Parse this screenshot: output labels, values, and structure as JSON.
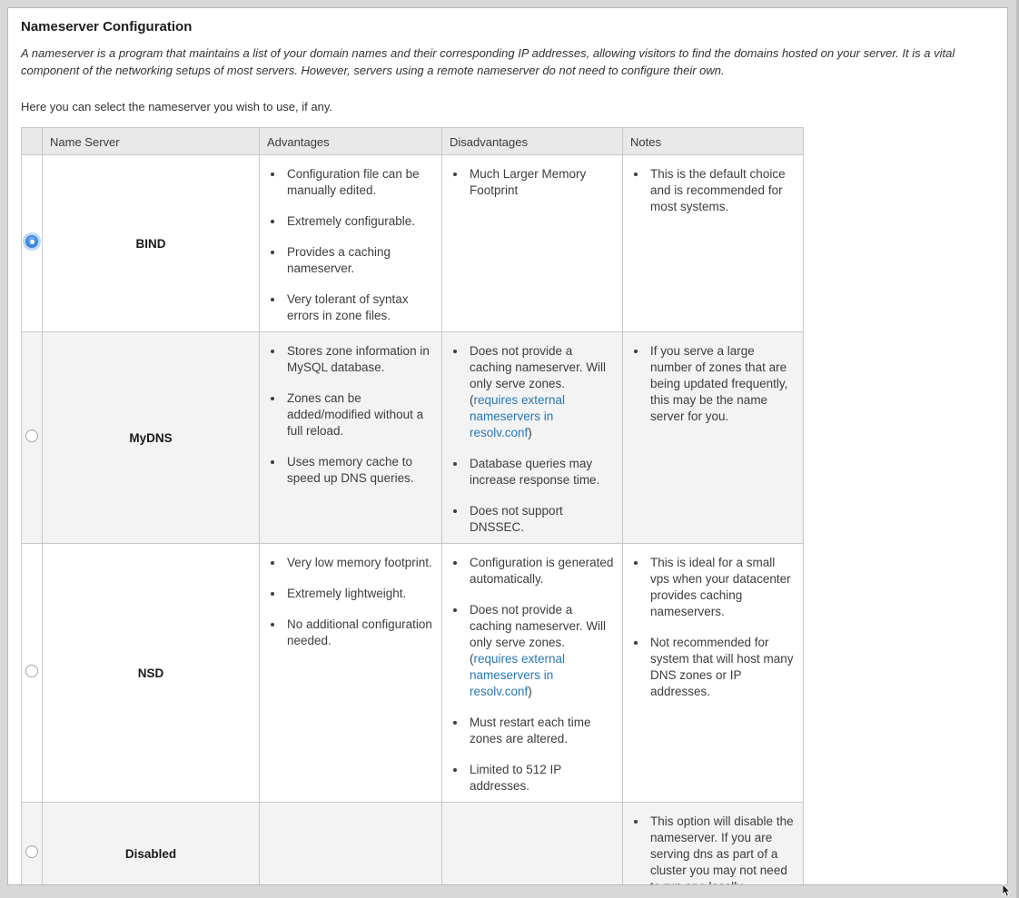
{
  "page": {
    "title": "Nameserver Configuration",
    "description": "A nameserver is a program that maintains a list of your domain names and their corresponding IP addresses, allowing visitors to find the domains hosted on your server. It is a vital component of the networking setups of most servers. However, servers using a remote nameserver do not need to configure their own.",
    "instruction": "Here you can select the nameserver you wish to use, if any."
  },
  "colors": {
    "link": "#2878b8",
    "radio_selected": "#3c8ce6",
    "header_bg": "#e9e9e9",
    "alt_row_bg": "#f3f3f3",
    "page_bg": "#d8d8d8"
  },
  "table": {
    "headers": [
      "",
      "Name Server",
      "Advantages",
      "Disadvantages",
      "Notes"
    ],
    "rows": [
      {
        "name": "BIND",
        "selected": true,
        "advantages": [
          [
            {
              "text": "Configuration file can be manually edited."
            }
          ],
          [
            {
              "text": "Extremely configurable."
            }
          ],
          [
            {
              "text": "Provides a caching nameserver."
            }
          ],
          [
            {
              "text": "Very tolerant of syntax errors in zone files."
            }
          ]
        ],
        "disadvantages": [
          [
            {
              "text": "Much Larger Memory Footprint"
            }
          ]
        ],
        "notes": [
          [
            {
              "text": "This is the default choice and is recommended for most systems."
            }
          ]
        ]
      },
      {
        "name": "MyDNS",
        "selected": false,
        "advantages": [
          [
            {
              "text": "Stores zone information in MySQL database."
            }
          ],
          [
            {
              "text": "Zones can be added/modified without a full reload."
            }
          ],
          [
            {
              "text": "Uses memory cache to speed up DNS queries."
            }
          ]
        ],
        "disadvantages": [
          [
            {
              "text": "Does not provide a caching nameserver. Will only serve zones. ("
            },
            {
              "text": "requires external nameservers in resolv.conf",
              "link": true
            },
            {
              "text": ")"
            }
          ],
          [
            {
              "text": "Database queries may increase response time."
            }
          ],
          [
            {
              "text": "Does not support DNSSEC."
            }
          ]
        ],
        "notes": [
          [
            {
              "text": "If you serve a large number of zones that are being updated frequently, this may be the name server for you."
            }
          ]
        ]
      },
      {
        "name": "NSD",
        "selected": false,
        "advantages": [
          [
            {
              "text": "Very low memory footprint."
            }
          ],
          [
            {
              "text": "Extremely lightweight."
            }
          ],
          [
            {
              "text": "No additional configuration needed."
            }
          ]
        ],
        "disadvantages": [
          [
            {
              "text": "Configuration is generated automatically."
            }
          ],
          [
            {
              "text": "Does not provide a caching nameserver. Will only serve zones. ("
            },
            {
              "text": "requires external nameservers in resolv.conf",
              "link": true
            },
            {
              "text": ")"
            }
          ],
          [
            {
              "text": "Must restart each time zones are altered."
            }
          ],
          [
            {
              "text": "Limited to 512 IP addresses."
            }
          ]
        ],
        "notes": [
          [
            {
              "text": "This is ideal for a small vps when your datacenter provides caching nameservers."
            }
          ],
          [
            {
              "text": "Not recommended for system that will host many DNS zones or IP addresses."
            }
          ]
        ]
      },
      {
        "name": "Disabled",
        "selected": false,
        "advantages": [],
        "disadvantages": [],
        "notes": [
          [
            {
              "text": "This option will disable the nameserver. If you are serving dns as part of a cluster you may not need to run one locally."
            }
          ]
        ]
      }
    ]
  }
}
